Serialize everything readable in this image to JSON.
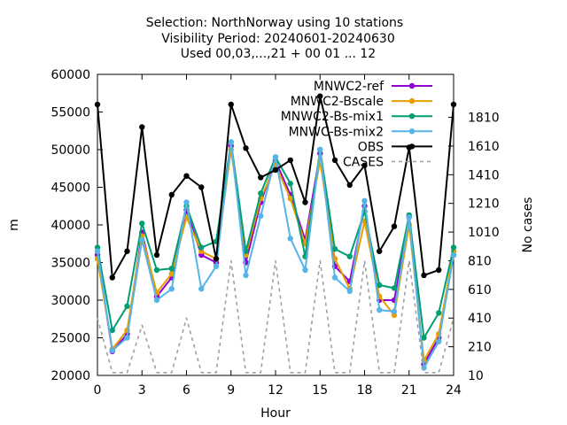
{
  "chart_data": {
    "type": "line",
    "title_lines": [
      "Selection: NorthNorway using    10 stations",
      "Visibility   Period: 20240601-20240630",
      "Used 00,03,...,21 + 00 01 ... 12"
    ],
    "xlabel": "Hour",
    "ylabel": "m",
    "y2label": "No cases",
    "xlim": [
      0,
      24
    ],
    "ylim": [
      20000,
      60000
    ],
    "y2lim": [
      10,
      2110
    ],
    "xticks": [
      0,
      3,
      6,
      9,
      12,
      15,
      18,
      21,
      24
    ],
    "yticks": [
      20000,
      25000,
      30000,
      35000,
      40000,
      45000,
      50000,
      55000,
      60000
    ],
    "y2ticks": [
      10,
      210,
      410,
      610,
      810,
      1010,
      1210,
      1410,
      1610,
      1810
    ],
    "legend_position": "top-right",
    "x": [
      0,
      1,
      2,
      3,
      4,
      5,
      6,
      7,
      8,
      9,
      10,
      11,
      12,
      13,
      14,
      15,
      16,
      17,
      18,
      19,
      20,
      21,
      22,
      23,
      24
    ],
    "series": [
      {
        "name": "MNWC2-ref",
        "color": "#9400d3",
        "marker": "circle",
        "axis": "y",
        "values": [
          36000,
          23200,
          25500,
          39000,
          30500,
          33000,
          42000,
          36000,
          35000,
          50500,
          35000,
          43000,
          48500,
          44000,
          38000,
          49500,
          34500,
          32500,
          42500,
          30000,
          30000,
          41000,
          21500,
          25000,
          36000
        ]
      },
      {
        "name": "MNWC2-Bscale",
        "color": "#e69f00",
        "marker": "circle",
        "axis": "y",
        "values": [
          35500,
          23500,
          26000,
          38500,
          31000,
          33500,
          41000,
          36500,
          35500,
          50000,
          36000,
          43500,
          48000,
          43500,
          37500,
          48500,
          35500,
          31500,
          40500,
          30500,
          28000,
          40000,
          22000,
          25500,
          36500
        ]
      },
      {
        "name": "MNWC2-Bs-mix1",
        "color": "#009e73",
        "marker": "circle",
        "axis": "y",
        "values": [
          37000,
          26000,
          29200,
          40200,
          34000,
          34200,
          42500,
          37000,
          37800,
          51000,
          36500,
          44200,
          49000,
          45500,
          35800,
          50000,
          36800,
          35800,
          41800,
          32000,
          31600,
          41300,
          25000,
          28300,
          37000
        ]
      },
      {
        "name": "MNWC-Bs-mix2",
        "color": "#56b4e9",
        "marker": "circle",
        "axis": "y",
        "values": [
          36500,
          23300,
          25000,
          38000,
          30000,
          31500,
          43000,
          31500,
          34500,
          51000,
          33300,
          41200,
          49000,
          38200,
          34000,
          50000,
          33000,
          31200,
          43200,
          28700,
          28500,
          41000,
          21000,
          24500,
          36000
        ]
      },
      {
        "name": "OBS",
        "color": "#000000",
        "marker": "circle",
        "axis": "y",
        "values": [
          56000,
          33000,
          36500,
          53000,
          36000,
          44000,
          46500,
          45000,
          35500,
          56000,
          50200,
          46300,
          47300,
          48600,
          43000,
          57100,
          48600,
          45300,
          47900,
          36500,
          39800,
          50300,
          33300,
          34000,
          56000
        ]
      },
      {
        "name": "CASES",
        "color": "#a0a0a0",
        "marker": "none",
        "dash": true,
        "axis": "y2",
        "values": [
          410,
          30,
          30,
          360,
          30,
          30,
          410,
          30,
          30,
          810,
          30,
          30,
          810,
          30,
          30,
          810,
          30,
          30,
          810,
          30,
          30,
          810,
          30,
          30,
          410
        ]
      }
    ]
  }
}
